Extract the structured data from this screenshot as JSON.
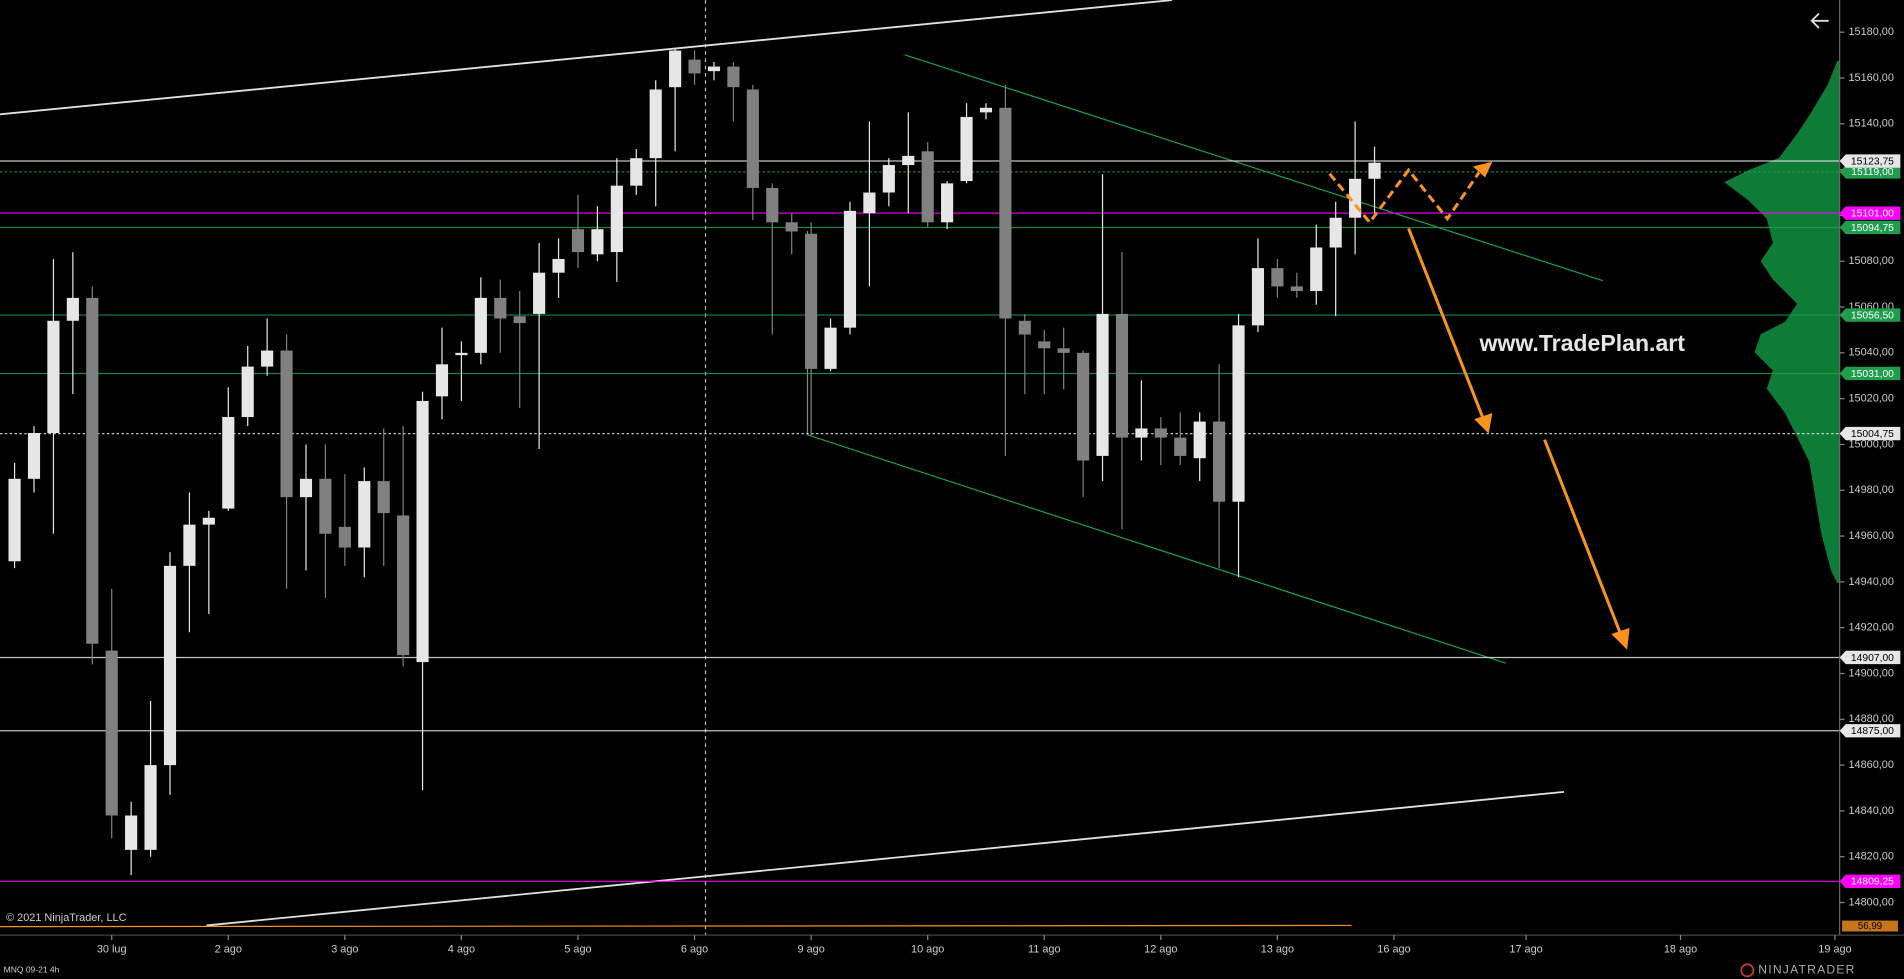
{
  "chart_data": {
    "type": "candlestick",
    "instrument": "MNQ 09-21 4h",
    "watermark": "www.TradePlan.art",
    "copyright": "© 2021 NinjaTrader, LLC",
    "brand": "NINJATRADER",
    "indicator_label": "56,99",
    "up_color": "#e6e6e6",
    "down_color": "#808080",
    "open": [
      14949,
      14985,
      15005,
      15054,
      15064,
      14910,
      14823,
      14823,
      14860,
      14947,
      14965,
      14972,
      15012,
      15034,
      15041,
      14977,
      14985,
      14964,
      14955,
      14984,
      14969,
      14905,
      15021,
      15039,
      15040,
      15064,
      15056,
      15057,
      15075,
      15094,
      15083,
      15084,
      15113,
      15125,
      15156,
      15168,
      15163,
      15165,
      15155,
      15112,
      15097,
      15092,
      15033,
      15051,
      15101,
      15110,
      15122,
      15128,
      15097,
      15115,
      15145,
      15147,
      15054,
      15045,
      15042,
      15040,
      14995,
      15057,
      15003,
      15007,
      15003,
      14994,
      15010,
      14975,
      15052,
      15077,
      15069,
      15067,
      15086,
      15099,
      15116
    ],
    "high": [
      14992,
      15008,
      15081,
      15084,
      15069,
      14937,
      14844,
      14888,
      14953,
      14979,
      14971,
      15025,
      15043,
      15055,
      15048,
      15000,
      15000,
      14987,
      14990,
      15007,
      15008,
      15023,
      15051,
      15045,
      15073,
      15072,
      15067,
      15088,
      15090,
      15109,
      15104,
      15125,
      15129,
      15159,
      15173,
      15172,
      15167,
      15167,
      15157,
      15114,
      15101,
      15097,
      15055,
      15106,
      15141,
      15125,
      15145,
      15132,
      15115,
      15149,
      15149,
      15157,
      15057,
      15050,
      15051,
      15041,
      15118,
      15084,
      15028,
      15012,
      15014,
      15014,
      15035,
      15057,
      15090,
      15081,
      15075,
      15096,
      15106,
      15141,
      15130
    ],
    "low": [
      14946,
      14979,
      14961,
      15022,
      14904,
      14828,
      14812,
      14820,
      14847,
      14918,
      14926,
      14971,
      15008,
      15030,
      14937,
      14945,
      14933,
      14947,
      14942,
      14947,
      14903,
      14849,
      15011,
      15019,
      15035,
      15040,
      15016,
      14998,
      15064,
      15077,
      15080,
      15071,
      15109,
      15104,
      15128,
      15157,
      15159,
      15141,
      15098,
      15048,
      15083,
      15004,
      15032,
      15048,
      15069,
      15104,
      15101,
      15095,
      15094,
      15114,
      15142,
      14995,
      15022,
      15022,
      15024,
      14977,
      14984,
      14963,
      14993,
      14991,
      14991,
      14984,
      14946,
      14942,
      15049,
      15064,
      15064,
      15061,
      15056,
      15083,
      15101
    ],
    "close": [
      14985,
      15005,
      15054,
      15064,
      14913,
      14838,
      14838,
      14860,
      14947,
      14965,
      14968,
      15012,
      15034,
      15041,
      14977,
      14985,
      14961,
      14955,
      14984,
      14970,
      14908,
      15019,
      15035,
      15040,
      15064,
      15055,
      15053,
      15075,
      15081,
      15084,
      15094,
      15113,
      15125,
      15155,
      15172,
      15162,
      15165,
      15156,
      15112,
      15097,
      15093,
      15033,
      15051,
      15102,
      15110,
      15122,
      15126,
      15097,
      15114,
      15143,
      15147,
      15055,
      15048,
      15042,
      15040,
      14993,
      15057,
      15003,
      15007,
      15003,
      14995,
      15010,
      14975,
      15052,
      15077,
      15069,
      15067,
      15086,
      15099,
      15116,
      15123
    ],
    "xlim": [
      -0.75,
      93.94
    ],
    "xticks": [
      {
        "value": 5,
        "label": "30 lug"
      },
      {
        "value": 11,
        "label": "2 ago"
      },
      {
        "value": 17,
        "label": "3 ago"
      },
      {
        "value": 23,
        "label": "4 ago"
      },
      {
        "value": 29,
        "label": "5 ago"
      },
      {
        "value": 35,
        "label": "6 ago"
      },
      {
        "value": 41,
        "label": "9 ago"
      },
      {
        "value": 47,
        "label": "10 ago"
      },
      {
        "value": 53,
        "label": "11 ago"
      },
      {
        "value": 59,
        "label": "12 ago"
      },
      {
        "value": 65,
        "label": "13 ago"
      },
      {
        "value": 71,
        "label": "16 ago"
      },
      {
        "value": 77.8,
        "label": "17 ago"
      },
      {
        "value": 85.75,
        "label": "18 ago"
      },
      {
        "value": 93.7,
        "label": "19 ago"
      }
    ],
    "ylim": [
      14790,
      15194
    ],
    "yticks": [
      {
        "value": 14800,
        "label": "14800,00"
      },
      {
        "value": 14820,
        "label": "14820,00"
      },
      {
        "value": 14840,
        "label": "14840,00"
      },
      {
        "value": 14860,
        "label": "14860,00"
      },
      {
        "value": 14880,
        "label": "14880,00"
      },
      {
        "value": 14900,
        "label": "14900,00"
      },
      {
        "value": 14920,
        "label": "14920,00"
      },
      {
        "value": 14940,
        "label": "14940,00"
      },
      {
        "value": 14960,
        "label": "14960,00"
      },
      {
        "value": 14980,
        "label": "14980,00"
      },
      {
        "value": 15000,
        "label": "15000,00"
      },
      {
        "value": 15020,
        "label": "15020,00"
      },
      {
        "value": 15040,
        "label": "15040,00"
      },
      {
        "value": 15060,
        "label": "15060,00"
      },
      {
        "value": 15080,
        "label": "15080,00"
      },
      {
        "value": 15100,
        "label": "15100,00"
      },
      {
        "value": 15120,
        "label": "15120,00"
      },
      {
        "value": 15140,
        "label": "15140,00"
      },
      {
        "value": 15160,
        "label": "15160,00"
      },
      {
        "value": 15180,
        "label": "15180,00"
      }
    ],
    "levels": [
      {
        "value": 15119,
        "label": "15119,00",
        "color": "#1f9d4c",
        "dashed": true
      },
      {
        "value": 15123.75,
        "label": "15123,75",
        "color": "#e6e6e6",
        "dashed": false
      },
      {
        "value": 15101,
        "label": "15101,00",
        "color": "#ff00ff",
        "dashed": false
      },
      {
        "value": 15094.75,
        "label": "15094,75",
        "color": "#1f9d4c",
        "dashed": false
      },
      {
        "value": 15056.5,
        "label": "15056,50",
        "color": "#1f9d4c",
        "dashed": false
      },
      {
        "value": 15031,
        "label": "15031,00",
        "color": "#1f9d4c",
        "dashed": false
      },
      {
        "value": 15004.75,
        "label": "15004,75",
        "color": "#e6e6e6",
        "dashed": true
      },
      {
        "value": 14907,
        "label": "14907,00",
        "color": "#e6e6e6",
        "dashed": false
      },
      {
        "value": 14875,
        "label": "14875,00",
        "color": "#e6e6e6",
        "dashed": false
      },
      {
        "value": 14809.25,
        "label": "14809,25",
        "color": "#ff00ff",
        "dashed": false
      }
    ]
  }
}
